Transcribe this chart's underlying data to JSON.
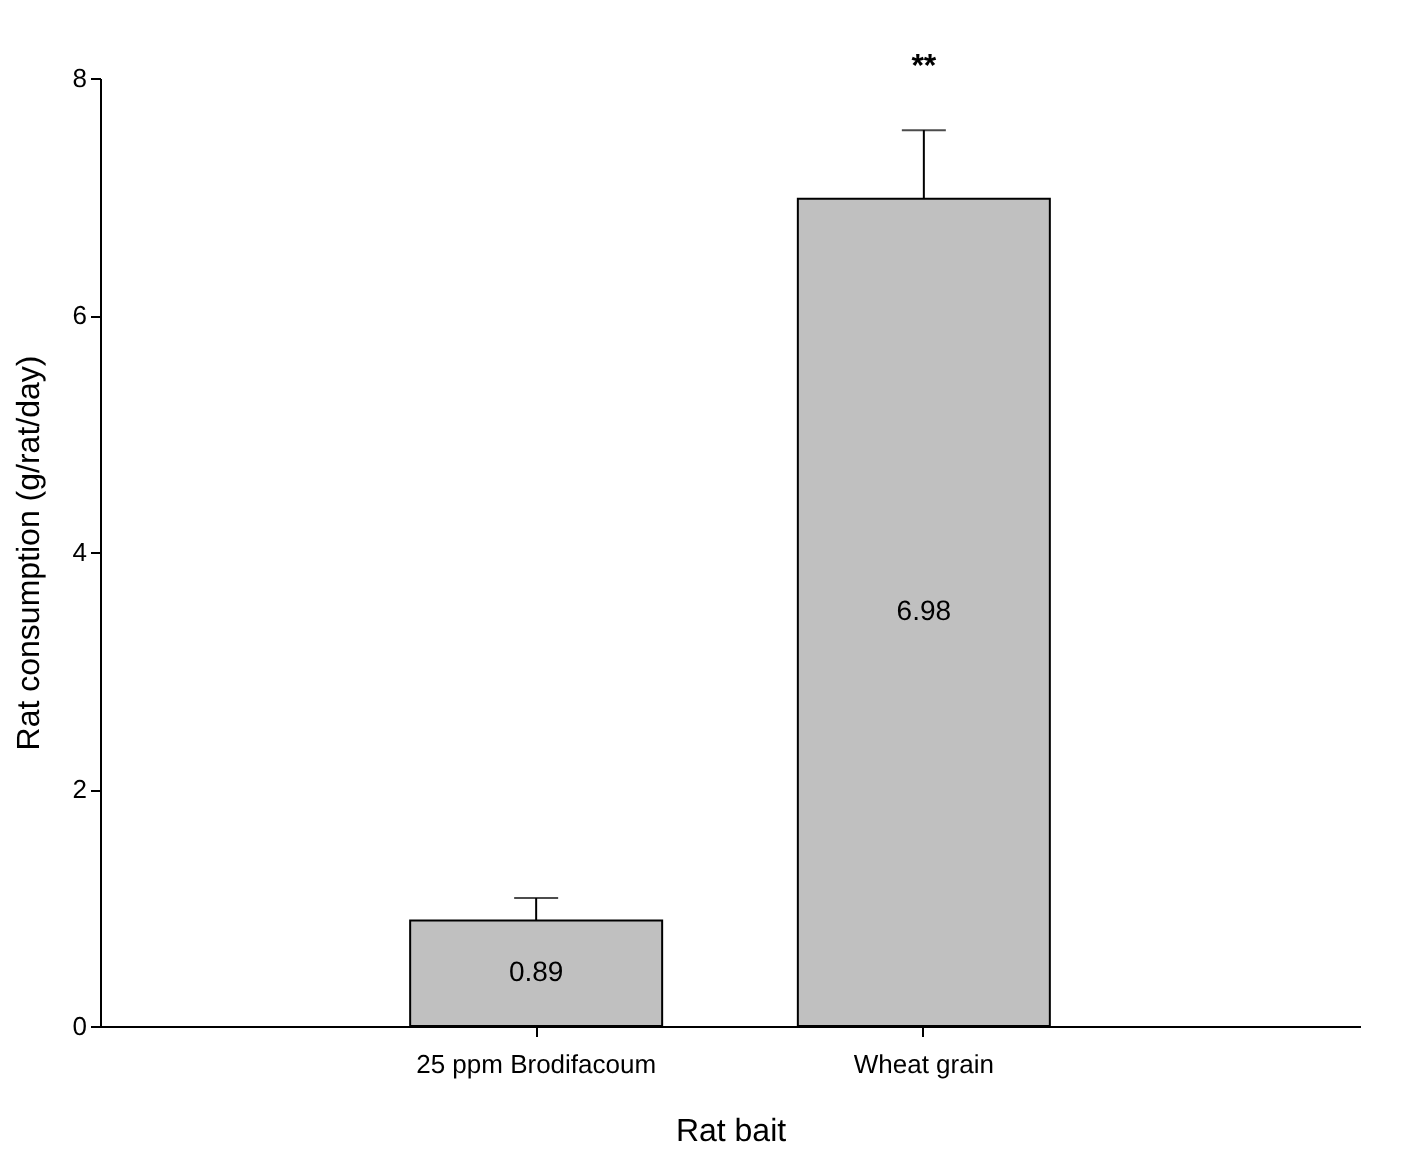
{
  "chart_data": {
    "type": "bar",
    "xlabel": "Rat bait",
    "ylabel": "Rat consumption (g/rat/day)",
    "categories": [
      "25 ppm Brodifacoum",
      "Wheat grain"
    ],
    "values": [
      0.89,
      6.98
    ],
    "errors": [
      [
        0.89,
        1.08
      ],
      [
        6.98,
        7.56
      ]
    ],
    "color": "#c0c0c0",
    "data_labels": true,
    "ylim": [
      0,
      8
    ],
    "yticks": [
      0,
      2,
      4,
      6,
      8
    ],
    "grid": false,
    "annotations": [
      "**"
    ]
  }
}
